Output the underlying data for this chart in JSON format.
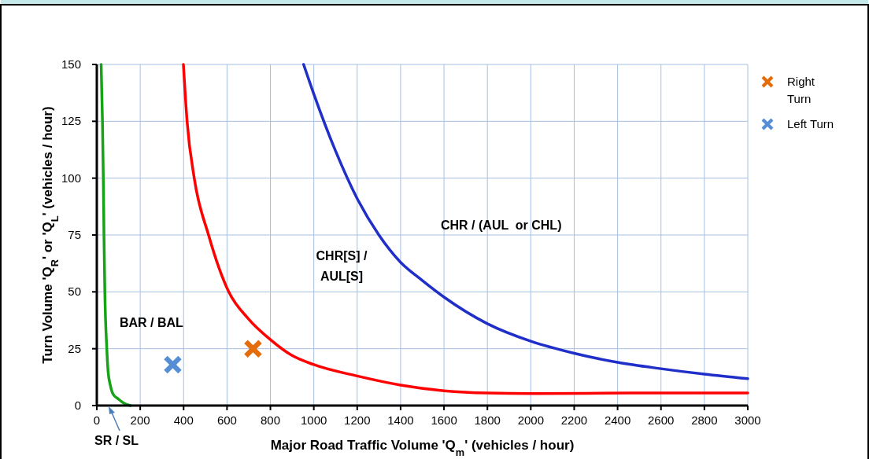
{
  "chart_data": {
    "type": "line",
    "xlabel": "Major Road Traffic Volume 'Q$_{m}$' (vehicles / hour)",
    "ylabel": "Turn Volume 'Q$_{R}$' or 'Q$_{L}$' (vehicles / hour)",
    "xlim": [
      0,
      3000
    ],
    "xticks": [
      0,
      200,
      400,
      600,
      800,
      1000,
      1200,
      1400,
      1600,
      1800,
      2000,
      2200,
      2400,
      2600,
      2800,
      3000
    ],
    "ylim": [
      0,
      150
    ],
    "yticks": [
      0,
      25,
      50,
      75,
      100,
      125,
      150
    ],
    "grid": true,
    "legend": "top right",
    "series": [
      {
        "color": "#18a218",
        "x": [
          20,
          26,
          30,
          33,
          37,
          46,
          52,
          62,
          75,
          98,
          125,
          155
        ],
        "values": [
          150,
          125,
          100,
          75,
          50,
          25,
          15,
          9,
          5,
          3,
          1,
          0
        ]
      },
      {
        "color": "#ff0000",
        "x": [
          399,
          416,
          449,
          515,
          608,
          700,
          800,
          900,
          1000,
          1200,
          1400,
          1600,
          1800,
          2000,
          2500,
          3000
        ],
        "values": [
          150,
          125,
          100,
          75,
          50,
          38,
          29,
          22,
          18,
          13,
          9,
          6.5,
          5.5,
          5.3,
          5.5,
          5.5
        ]
      },
      {
        "color": "#1f2fc8",
        "x": [
          953,
          1000,
          1100,
          1200,
          1300,
          1400,
          1500,
          1600,
          1800,
          2000,
          2200,
          2400,
          2600,
          2800,
          3000
        ],
        "values": [
          150,
          137,
          112,
          91,
          75,
          63,
          55,
          47.7,
          36,
          28.3,
          23,
          19,
          16.2,
          13.8,
          11.8
        ]
      },
      {
        "type": "scatter",
        "name": "Right Turn",
        "color": "#e46c0a",
        "marker": "cross",
        "x": [
          720
        ],
        "values": [
          25
        ]
      },
      {
        "type": "scatter",
        "name": "Left Turn",
        "color": "#558ed5",
        "marker": "cross",
        "x": [
          350
        ],
        "values": [
          18
        ]
      }
    ],
    "annotations": [
      "BAR / BAL",
      "CHR[S] /\nAUL[S]",
      "CHR / (AUL  or CHL)",
      "SR / SL"
    ]
  }
}
